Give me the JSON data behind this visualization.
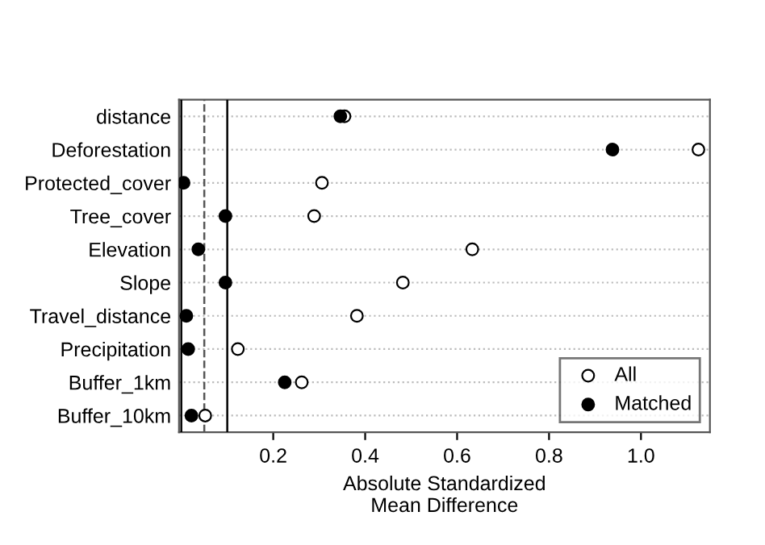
{
  "chart_data": {
    "type": "scatter",
    "categories": [
      "distance",
      "Deforestation",
      "Protected_cover",
      "Tree_cover",
      "Elevation",
      "Slope",
      "Travel_distance",
      "Precipitation",
      "Buffer_1km",
      "Buffer_10km"
    ],
    "series": [
      {
        "name": "All",
        "color": "#000000",
        "values": [
          0.355,
          1.125,
          0.306,
          0.289,
          0.633,
          0.482,
          0.382,
          0.123,
          0.262,
          0.052
        ]
      },
      {
        "name": "Matched",
        "color": "#000000",
        "values": [
          0.346,
          0.938,
          0.005,
          0.096,
          0.037,
          0.096,
          0.011,
          0.015,
          0.225,
          0.022
        ]
      }
    ],
    "orientation": "horizontal",
    "xlabel": "Absolute Standardized\nMean Difference",
    "xlim": [
      -0.005,
      1.15
    ],
    "xticks": [
      0.2,
      0.4,
      0.6,
      0.8,
      {
        "value": 1,
        "label": "1.0"
      }
    ],
    "ref_lines": [
      {
        "axis": "x",
        "value": 0,
        "color": "#000000",
        "line_style": "solid"
      },
      {
        "axis": "x",
        "value": 0.05,
        "color": "#555555",
        "line_style": "dashed"
      },
      {
        "axis": "x",
        "value": 0.1,
        "color": "#000000",
        "line_style": "solid"
      }
    ],
    "grid": "y",
    "marker": "circle",
    "legend": "bottom right"
  }
}
